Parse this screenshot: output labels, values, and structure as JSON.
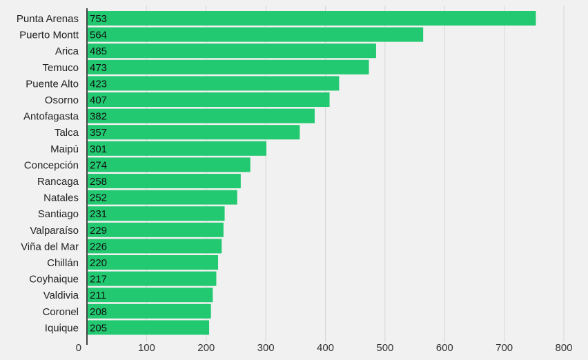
{
  "chart_data": {
    "type": "bar",
    "orientation": "horizontal",
    "categories": [
      "Punta Arenas",
      "Puerto Montt",
      "Arica",
      "Temuco",
      "Puente Alto",
      "Osorno",
      "Antofagasta",
      "Talca",
      "Maipú",
      "Concepción",
      "Rancaga",
      "Natales",
      "Santiago",
      "Valparaíso",
      "Viña del Mar",
      "Chillán",
      "Coyhaique",
      "Valdivia",
      "Coronel",
      "Iquique"
    ],
    "values": [
      753,
      564,
      485,
      473,
      423,
      407,
      382,
      357,
      301,
      274,
      258,
      252,
      231,
      229,
      226,
      220,
      217,
      211,
      208,
      205
    ],
    "title": "",
    "xlabel": "",
    "ylabel": "",
    "xlim": [
      0,
      800
    ],
    "xticks": [
      0,
      100,
      200,
      300,
      400,
      500,
      600,
      700,
      800
    ],
    "grid": true,
    "legend": "none",
    "bar_color": "#22c970",
    "background_color": "#f1f1f1",
    "grid_color": "#d6d6d6",
    "axis_color": "#444444"
  }
}
